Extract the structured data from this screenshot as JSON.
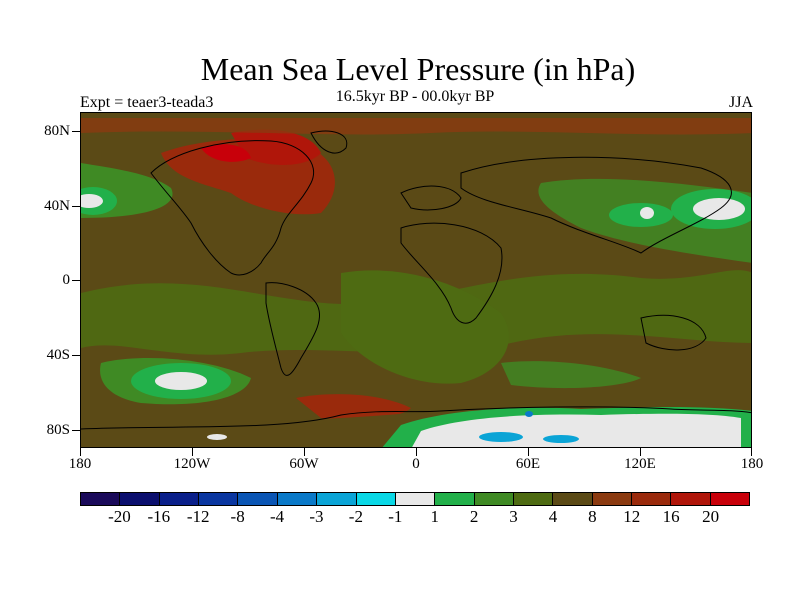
{
  "title": "Mean Sea Level Pressure (in hPa)",
  "subtitle": "16.5kyr BP - 00.0kyr BP",
  "experiment_label": "Expt = teaer3-teada3",
  "season": "JJA",
  "map": {
    "projection": "cylindrical equidistant",
    "lon_range": [
      -180,
      180
    ],
    "lat_range": [
      -90,
      90
    ],
    "lat_tick_labels": [
      "80N",
      "40N",
      "0",
      "40S",
      "80S"
    ],
    "lon_tick_labels": [
      "180",
      "120W",
      "60W",
      "0",
      "60E",
      "120E",
      "180"
    ],
    "regions": [
      {
        "name": "north-pacific-high",
        "category": 1,
        "lon": -170,
        "lat": 42
      },
      {
        "name": "north-america-high",
        "category": 12,
        "lon": -90,
        "lat": 58
      },
      {
        "name": "arctic-canada",
        "category": 16,
        "lon": -75,
        "lat": 70
      },
      {
        "name": "south-pacific-low",
        "category": 1,
        "lon": -130,
        "lat": -52
      },
      {
        "name": "north-west-pacific-low",
        "category": 1,
        "lon": 160,
        "lat": 38
      },
      {
        "name": "east-asia-low",
        "category": 1,
        "lon": 125,
        "lat": 40
      },
      {
        "name": "antarctic-plateau",
        "category": -1,
        "lon": 60,
        "lat": -80
      }
    ]
  },
  "colorbar": {
    "colors": [
      "#1a0a5a",
      "#0b0f6e",
      "#0a1f8a",
      "#0a36a0",
      "#0a55b4",
      "#0a79c8",
      "#0aa4d6",
      "#0ad8e6",
      "#e8e8e8",
      "#22b04a",
      "#3f8a24",
      "#4e6b12",
      "#5b4a16",
      "#8b3a10",
      "#9a2a0c",
      "#b0160a",
      "#c8000a"
    ],
    "labels": [
      "-20",
      "-16",
      "-12",
      "-8",
      "-4",
      "-3",
      "-2",
      "-1",
      "1",
      "2",
      "3",
      "4",
      "8",
      "12",
      "16",
      "20"
    ]
  }
}
